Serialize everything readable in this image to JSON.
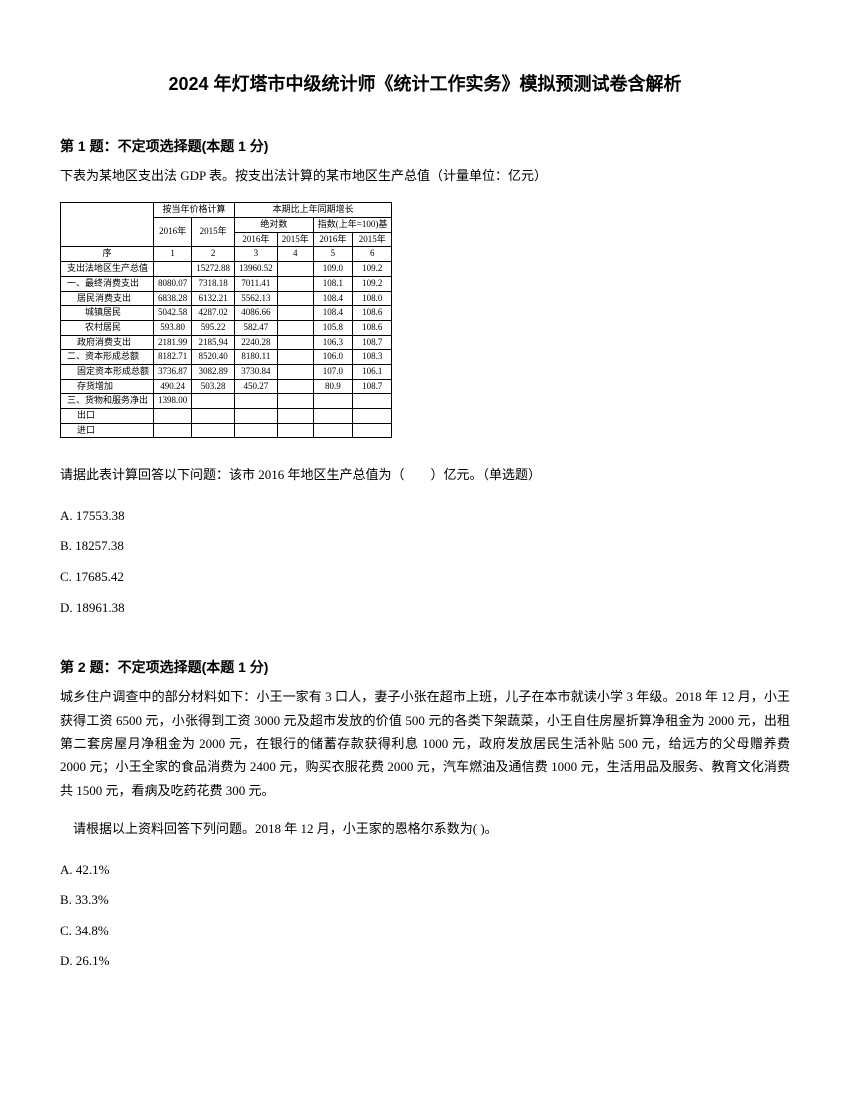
{
  "title": "2024 年灯塔市中级统计师《统计工作实务》模拟预测试卷含解析",
  "q1": {
    "header": "第 1 题：不定项选择题(本题 1 分)",
    "body": "下表为某地区支出法 GDP 表。按支出法计算的某市地区生产总值（计量单位：亿元）",
    "prompt": "请据此表计算回答以下问题：该市 2016 年地区生产总值为（　　）亿元。（单选题）",
    "options": {
      "A": "A. 17553.38",
      "B": "B. 18257.38",
      "C": "C. 17685.42",
      "D": "D. 18961.38"
    }
  },
  "table": {
    "header_groups": {
      "blank": "",
      "col_group_left": "按当年价格计算",
      "col_group_right": "本期比上年同期增长",
      "year_2016": "2016年",
      "year_2015": "2015年",
      "sub_left": "绝对数",
      "sub_right": "指数(上年=100)基",
      "y2016": "2016年",
      "y2015": "2015年"
    },
    "num_row": [
      "序",
      "1",
      "2",
      "3",
      "4",
      "5",
      "6"
    ],
    "rows": [
      {
        "label": "支出法地区生产总值",
        "indent": 0,
        "cells": [
          "",
          "15272.88",
          "13960.52",
          "",
          "109.0",
          "109.2"
        ]
      },
      {
        "label": "一、最终消费支出",
        "indent": 0,
        "cells": [
          "8080.07",
          "7318.18",
          "7011.41",
          "",
          "108.1",
          "109.2"
        ]
      },
      {
        "label": "居民消费支出",
        "indent": 1,
        "cells": [
          "6838.28",
          "6132.21",
          "5562.13",
          "",
          "108.4",
          "108.0"
        ]
      },
      {
        "label": "城镇居民",
        "indent": 2,
        "cells": [
          "5042.58",
          "4287.02",
          "4086.66",
          "",
          "108.4",
          "108.6"
        ]
      },
      {
        "label": "农村居民",
        "indent": 2,
        "cells": [
          "593.80",
          "595.22",
          "582.47",
          "",
          "105.8",
          "108.6"
        ]
      },
      {
        "label": "政府消费支出",
        "indent": 1,
        "cells": [
          "2181.99",
          "2185.94",
          "2240.28",
          "",
          "106.3",
          "108.7"
        ]
      },
      {
        "label": "二、资本形成总额",
        "indent": 0,
        "cells": [
          "8182.71",
          "8520.40",
          "8180.11",
          "",
          "106.0",
          "108.3"
        ]
      },
      {
        "label": "固定资本形成总额",
        "indent": 1,
        "cells": [
          "3736.87",
          "3082.89",
          "3730.84",
          "",
          "107.0",
          "106.1"
        ]
      },
      {
        "label": "存货增加",
        "indent": 1,
        "cells": [
          "490.24",
          "503.28",
          "450.27",
          "",
          "80.9",
          "108.7"
        ]
      },
      {
        "label": "三、货物和服务净出",
        "indent": 0,
        "cells": [
          "1398.00",
          "",
          "",
          "",
          "",
          ""
        ]
      },
      {
        "label": "出口",
        "indent": 1,
        "cells": [
          "",
          "",
          "",
          "",
          "",
          ""
        ]
      },
      {
        "label": "进口",
        "indent": 1,
        "cells": [
          "",
          "",
          "",
          "",
          "",
          ""
        ]
      }
    ]
  },
  "q2": {
    "header": "第 2 题：不定项选择题(本题 1 分)",
    "body": "城乡住户调查中的部分材料如下：小王一家有 3 口人，妻子小张在超市上班，儿子在本市就读小学 3 年级。2018 年 12 月，小王获得工资 6500 元，小张得到工资 3000 元及超市发放的价值 500 元的各类下架蔬菜，小王自住房屋折算净租金为 2000 元，出租第二套房屋月净租金为 2000 元，在银行的储蓄存款获得利息 1000 元，政府发放居民生活补贴 500 元，给远方的父母赠养费 2000 元；小王全家的食品消费为 2400 元，购买衣服花费 2000 元，汽车燃油及通信费 1000 元，生活用品及服务、教育文化消费共 1500 元，看病及吃药花费 300 元。",
    "prompt": "请根据以上资料回答下列问题。2018 年 12 月，小王家的恩格尔系数为( )。",
    "options": {
      "A": "A. 42.1%",
      "B": "B. 33.3%",
      "C": "C. 34.8%",
      "D": "D. 26.1%"
    }
  }
}
